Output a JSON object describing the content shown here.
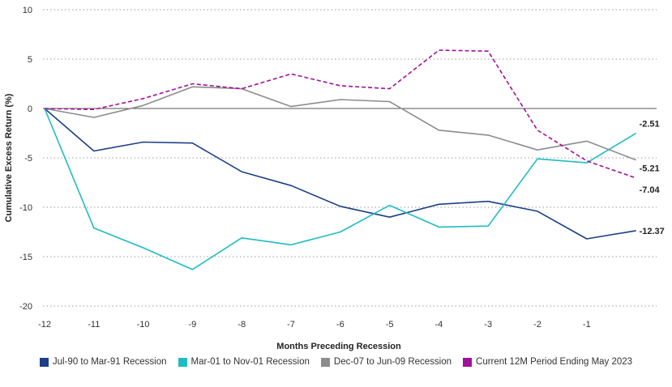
{
  "chart_data": {
    "type": "line",
    "xlabel": "Months Preceding Recession",
    "ylabel": "Cumulative Excess Return (%)",
    "ylim": [
      -20,
      10
    ],
    "yticks": [
      10,
      5,
      0,
      -5,
      -10,
      -15,
      -20
    ],
    "xticks": [
      -12,
      -11,
      -10,
      -9,
      -8,
      -7,
      -6,
      -5,
      -4,
      -3,
      -2,
      -1
    ],
    "grid": "horizontal dotted",
    "legend_position": "bottom",
    "series": [
      {
        "name": "Jul-90 to Mar-91 Recession",
        "color": "#1c3f87",
        "dashed": false,
        "x": [
          -12,
          -11,
          -10,
          -9,
          -8,
          -7,
          -6,
          -5,
          -4,
          -3,
          -2,
          -1,
          0
        ],
        "values": [
          0,
          -4.3,
          -3.4,
          -3.5,
          -6.4,
          -7.8,
          -9.9,
          -11.0,
          -9.7,
          -9.4,
          -10.4,
          -13.2,
          -12.37
        ],
        "end_label": "-12.37"
      },
      {
        "name": "Mar-01 to Nov-01 Recession",
        "color": "#1fbcc4",
        "dashed": false,
        "x": [
          -12,
          -11,
          -10,
          -9,
          -8,
          -7,
          -6,
          -5,
          -4,
          -3,
          -2,
          -1,
          0
        ],
        "values": [
          0,
          -12.1,
          -14.1,
          -16.3,
          -13.1,
          -13.8,
          -12.5,
          -9.8,
          -12.0,
          -11.9,
          -5.1,
          -5.5,
          -2.51
        ],
        "end_label": "-2.51"
      },
      {
        "name": "Dec-07 to Jun-09 Recession",
        "color": "#8c8c8c",
        "dashed": false,
        "x": [
          -12,
          -11,
          -10,
          -9,
          -8,
          -7,
          -6,
          -5,
          -4,
          -3,
          -2,
          -1,
          0
        ],
        "values": [
          0,
          -0.9,
          0.3,
          2.2,
          2.0,
          0.2,
          0.9,
          0.7,
          -2.2,
          -2.7,
          -4.2,
          -3.3,
          -5.21
        ],
        "end_label": "-5.21"
      },
      {
        "name": "Current 12M Period Ending May 2023",
        "color": "#a0109a",
        "dashed": true,
        "x": [
          -12,
          -11,
          -10,
          -9,
          -8,
          -7,
          -6,
          -5,
          -4,
          -3,
          -2,
          -1,
          0
        ],
        "values": [
          0,
          -0.1,
          1.0,
          2.5,
          2.0,
          3.5,
          2.3,
          2.0,
          5.9,
          5.8,
          -2.2,
          -5.3,
          -7.04
        ],
        "end_label": "-7.04"
      }
    ]
  }
}
